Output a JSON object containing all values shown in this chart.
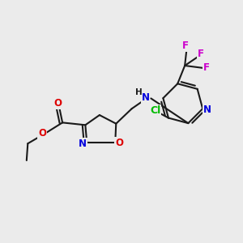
{
  "bg_color": "#ebebeb",
  "bond_color": "#1a1a1a",
  "bond_width": 1.5,
  "atom_colors": {
    "N": "#0000dd",
    "O": "#dd0000",
    "Cl": "#00bb00",
    "F": "#cc00cc",
    "H": "#1a1a1a"
  },
  "font_size": 8.5
}
